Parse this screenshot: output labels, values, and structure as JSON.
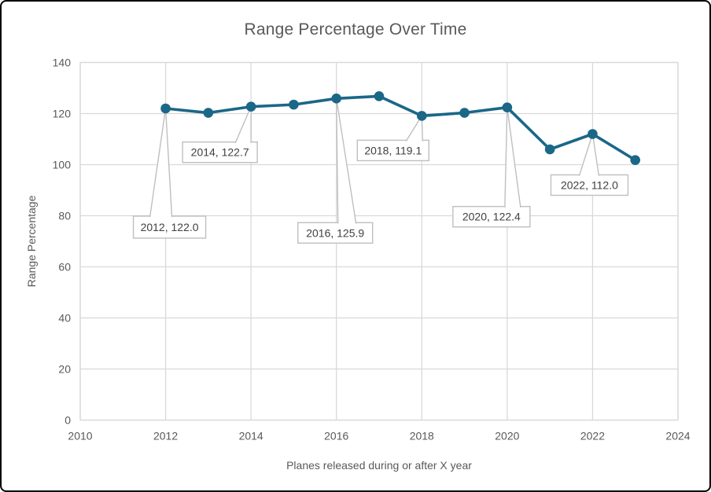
{
  "title": "Range Percentage Over Time",
  "chart_data": {
    "type": "line",
    "title": "Range Percentage Over Time",
    "xlabel": "Planes released during or after X year",
    "ylabel": "Range Percentage",
    "x": [
      2012,
      2013,
      2014,
      2015,
      2016,
      2017,
      2018,
      2019,
      2020,
      2021,
      2022,
      2023
    ],
    "values": [
      122.0,
      120.3,
      122.7,
      123.5,
      125.9,
      126.8,
      119.1,
      120.3,
      122.4,
      106.0,
      112.0,
      101.8
    ],
    "series_name": "Range Percentage",
    "xlim": [
      2010,
      2024
    ],
    "ylim": [
      0,
      140
    ],
    "x_ticks": [
      2010,
      2012,
      2014,
      2016,
      2018,
      2020,
      2022,
      2024
    ],
    "y_ticks": [
      0,
      20,
      40,
      60,
      80,
      100,
      120,
      140
    ],
    "grid": true,
    "legend": "none",
    "data_labels": [
      {
        "x": 2012,
        "y": 122.0,
        "label": "2012, 122.0"
      },
      {
        "x": 2014,
        "y": 122.7,
        "label": "2014, 122.7"
      },
      {
        "x": 2016,
        "y": 125.9,
        "label": "2016, 125.9"
      },
      {
        "x": 2018,
        "y": 119.1,
        "label": "2018, 119.1"
      },
      {
        "x": 2020,
        "y": 122.4,
        "label": "2020, 122.4"
      },
      {
        "x": 2022,
        "y": 112.0,
        "label": "2022, 112.0"
      }
    ]
  },
  "colors": {
    "line": "#1a6788",
    "marker": "#1a6788",
    "grid": "#d9d9d9",
    "plot_border": "#d9d9d9",
    "axis_text": "#595959",
    "title_text": "#595959",
    "callout_border": "#bfbfbf",
    "callout_fill": "#ffffff",
    "callout_text": "#404040",
    "leader_line": "#bfbfbf",
    "frame_border": "#000000"
  }
}
